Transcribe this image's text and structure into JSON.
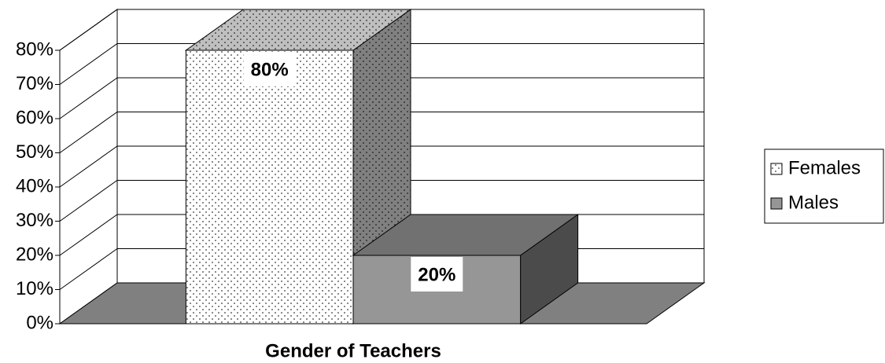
{
  "chart_data": {
    "type": "bar3d",
    "categories": [
      "Gender of Teachers"
    ],
    "series": [
      {
        "name": "Females",
        "color": "#ffffff",
        "pattern": "dots",
        "values": [
          80
        ],
        "value_labels": [
          "80%"
        ]
      },
      {
        "name": "Males",
        "color": "#969696",
        "values": [
          20
        ],
        "value_labels": [
          "20%"
        ]
      }
    ],
    "ylim": [
      0,
      80
    ],
    "yticks": [
      {
        "value": 0,
        "label": "0%"
      },
      {
        "value": 10,
        "label": "10%"
      },
      {
        "value": 20,
        "label": "20%"
      },
      {
        "value": 30,
        "label": "30%"
      },
      {
        "value": 40,
        "label": "40%"
      },
      {
        "value": 50,
        "label": "50%"
      },
      {
        "value": 60,
        "label": "60%"
      },
      {
        "value": 70,
        "label": "70%"
      },
      {
        "value": 80,
        "label": "80%"
      }
    ],
    "grid": true,
    "legend": "right"
  }
}
